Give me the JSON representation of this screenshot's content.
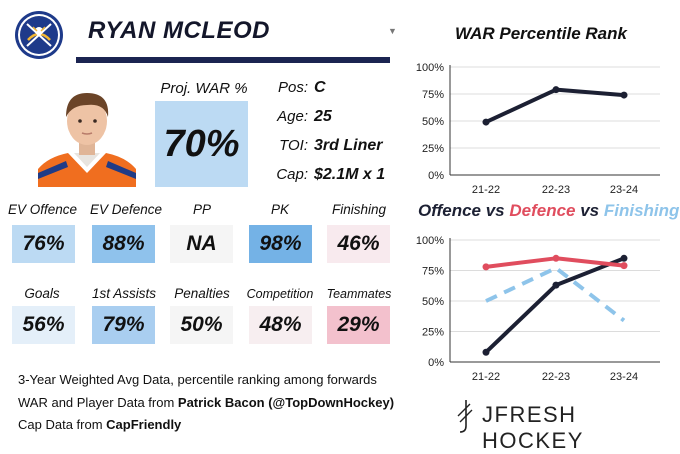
{
  "player": {
    "name": "RYAN MCLEOD",
    "dropdown_icon": "chevron-down-icon",
    "team_logo": "buffalo-sabres-logo",
    "photo": "player-headshot"
  },
  "proj_war": {
    "label": "Proj. WAR %",
    "value": "70%"
  },
  "info": [
    {
      "label": "Pos:",
      "value": "C"
    },
    {
      "label": "Age:",
      "value": "25"
    },
    {
      "label": "TOI:",
      "value": "3rd Liner"
    },
    {
      "label": "Cap:",
      "value": "$2.1M x 1"
    }
  ],
  "stats_row1": [
    {
      "label": "EV Offence",
      "value": "76%",
      "color": "#bcdaf3"
    },
    {
      "label": "EV Defence",
      "value": "88%",
      "color": "#8fc2ec"
    },
    {
      "label": "PP",
      "value": "NA",
      "color": "#f5f5f5"
    },
    {
      "label": "PK",
      "value": "98%",
      "color": "#74b2e6"
    },
    {
      "label": "Finishing",
      "value": "46%",
      "color": "#f8eaee"
    }
  ],
  "stats_row2": [
    {
      "label": "Goals",
      "value": "56%",
      "color": "#e4eff9"
    },
    {
      "label": "1st Assists",
      "value": "79%",
      "color": "#a9cef0"
    },
    {
      "label": "Penalties",
      "value": "50%",
      "color": "#f5f5f5"
    },
    {
      "label": "Competition",
      "value": "48%",
      "color": "#f7eef0"
    },
    {
      "label": "Teammates",
      "value": "29%",
      "color": "#f3c1cd"
    }
  ],
  "footer": {
    "line1": "3-Year Weighted Avg Data, percentile ranking among forwards",
    "line2_prefix": "WAR and Player Data from ",
    "line2_source": "Patrick Bacon (@TopDownHockey)",
    "line3_prefix": "Cap Data from ",
    "line3_source": "CapFriendly",
    "brand": "JFRESH HOCKEY"
  },
  "chart_data": [
    {
      "type": "line",
      "title": "WAR Percentile Rank",
      "x": [
        "21-22",
        "22-23",
        "23-24"
      ],
      "ylim": [
        0,
        100
      ],
      "yticks": [
        "0%",
        "25%",
        "50%",
        "75%",
        "100%"
      ],
      "grid": "horizontal",
      "series": [
        {
          "values": [
            49,
            79,
            74
          ],
          "color": "#1c2033",
          "dash": false
        }
      ]
    },
    {
      "type": "line",
      "title_parts": [
        {
          "text": "Offence",
          "color": "#1c2033"
        },
        {
          "text": " vs ",
          "color": "#1c2033"
        },
        {
          "text": "Defence",
          "color": "#e04d5e"
        },
        {
          "text": " vs ",
          "color": "#1c2033"
        },
        {
          "text": "Finishing",
          "color": "#8ec4ea"
        }
      ],
      "x": [
        "21-22",
        "22-23",
        "23-24"
      ],
      "ylim": [
        0,
        100
      ],
      "yticks": [
        "0%",
        "25%",
        "50%",
        "75%",
        "100%"
      ],
      "grid": "horizontal",
      "series": [
        {
          "name": "Offence",
          "values": [
            8,
            63,
            85
          ],
          "color": "#1c2033",
          "dash": false
        },
        {
          "name": "Defence",
          "values": [
            78,
            85,
            79
          ],
          "color": "#e04d5e",
          "dash": false
        },
        {
          "name": "Finishing",
          "values": [
            50,
            77,
            34
          ],
          "color": "#8ec4ea",
          "dash": true
        }
      ]
    }
  ]
}
